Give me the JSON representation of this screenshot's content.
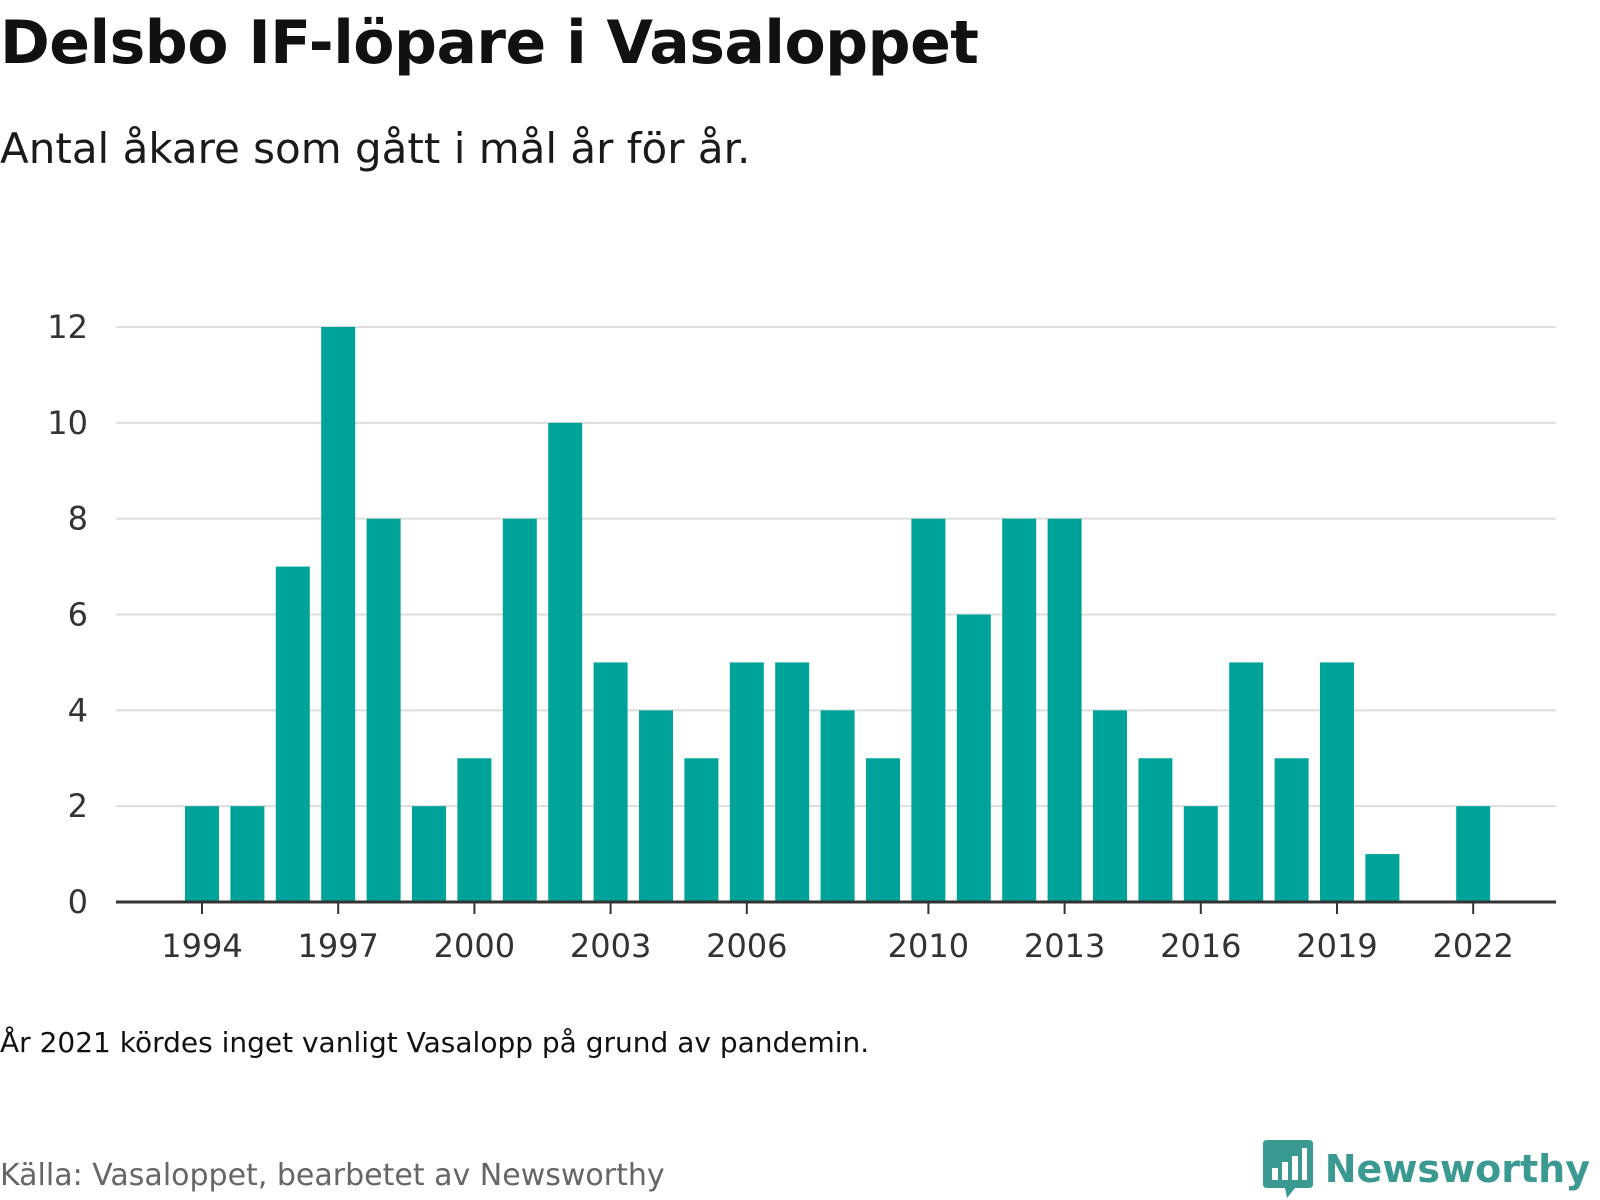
{
  "title": "Delsbo IF-löpare i Vasaloppet",
  "subtitle": "Antal åkare som gått i mål år för år.",
  "note": "År 2021 kördes inget vanligt Vasalopp på grund av pandemin.",
  "source": "Källa: Vasaloppet, bearbetet av Newsworthy",
  "brand": {
    "name": "Newsworthy",
    "logo_icon": "bar-chart-speech-bubble-icon"
  },
  "colors": {
    "bar": "#00a39a",
    "grid": "#dddddd",
    "axis": "#333333",
    "brand": "#3a9a92"
  },
  "chart_data": {
    "type": "bar",
    "x": [
      1994,
      1995,
      1996,
      1997,
      1998,
      1999,
      2000,
      2001,
      2002,
      2003,
      2004,
      2005,
      2006,
      2007,
      2008,
      2009,
      2010,
      2011,
      2012,
      2013,
      2014,
      2015,
      2016,
      2017,
      2018,
      2019,
      2020,
      2021,
      2022
    ],
    "values": [
      2,
      2,
      7,
      12,
      8,
      2,
      3,
      8,
      10,
      5,
      4,
      3,
      5,
      5,
      4,
      3,
      8,
      6,
      8,
      8,
      4,
      3,
      2,
      5,
      3,
      5,
      1,
      null,
      2
    ],
    "x_ticks": [
      1994,
      1997,
      2000,
      2003,
      2006,
      2010,
      2013,
      2016,
      2019,
      2022
    ],
    "y_ticks": [
      0,
      2,
      4,
      6,
      8,
      10,
      12
    ],
    "ylim": [
      0,
      12
    ],
    "grid": true,
    "legend": "none",
    "xlabel": "",
    "ylabel": ""
  }
}
